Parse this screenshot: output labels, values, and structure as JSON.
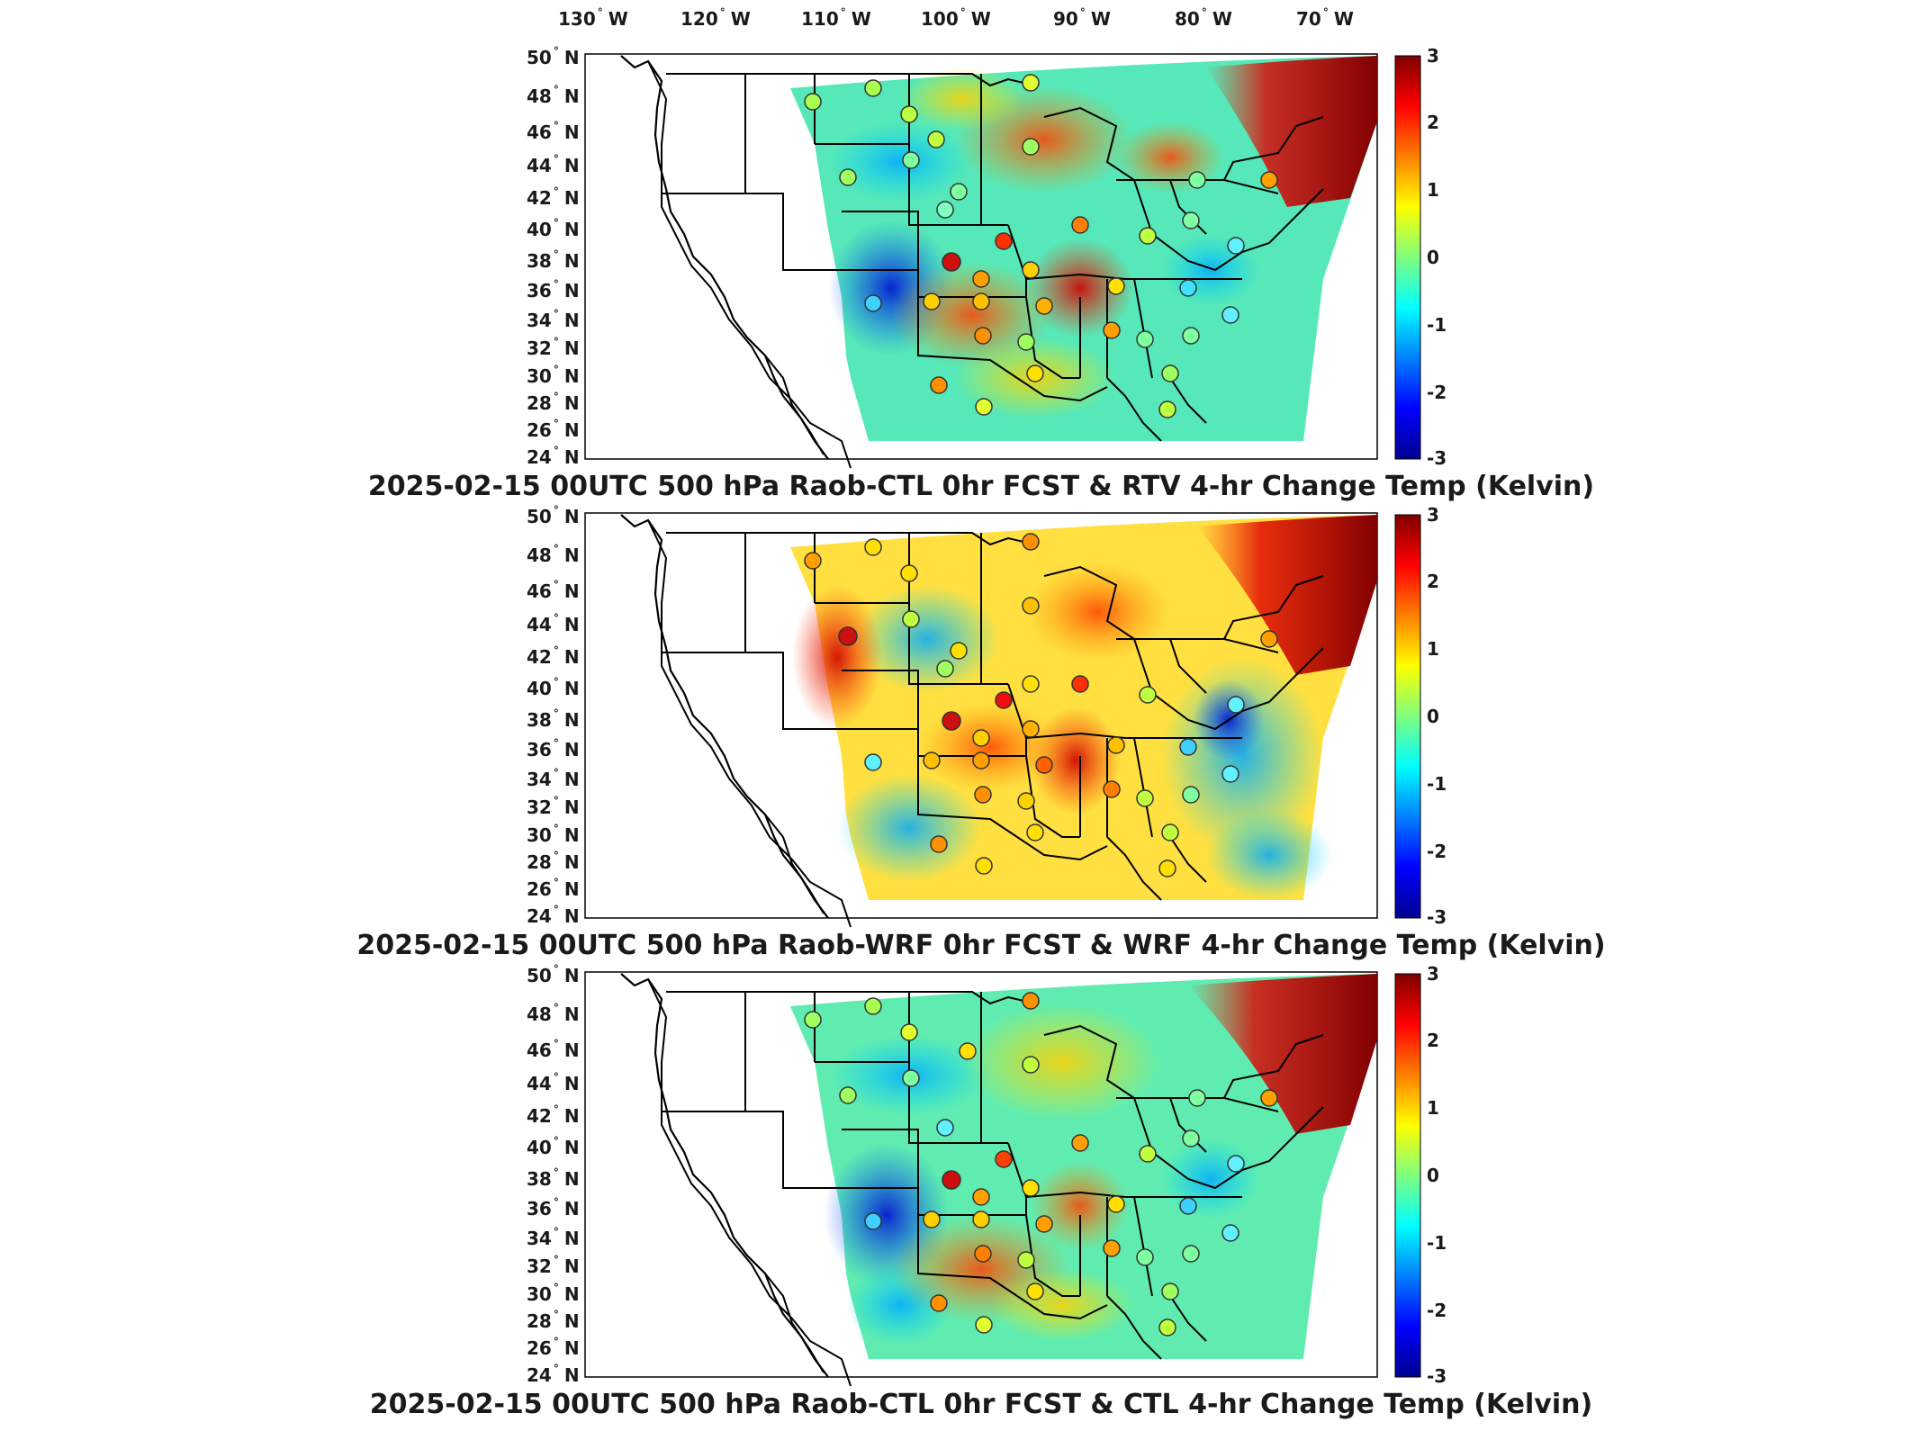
{
  "lon_labels": [
    {
      "deg": "130",
      "hemi": "W"
    },
    {
      "deg": "120",
      "hemi": "W"
    },
    {
      "deg": "110",
      "hemi": "W"
    },
    {
      "deg": "100",
      "hemi": "W"
    },
    {
      "deg": "90",
      "hemi": "W"
    },
    {
      "deg": "80",
      "hemi": "W"
    },
    {
      "deg": "70",
      "hemi": "W"
    }
  ],
  "lat_labels": [
    {
      "deg": "50",
      "hemi": "N"
    },
    {
      "deg": "48",
      "hemi": "N"
    },
    {
      "deg": "46",
      "hemi": "N"
    },
    {
      "deg": "44",
      "hemi": "N"
    },
    {
      "deg": "42",
      "hemi": "N"
    },
    {
      "deg": "40",
      "hemi": "N"
    },
    {
      "deg": "38",
      "hemi": "N"
    },
    {
      "deg": "36",
      "hemi": "N"
    },
    {
      "deg": "34",
      "hemi": "N"
    },
    {
      "deg": "32",
      "hemi": "N"
    },
    {
      "deg": "30",
      "hemi": "N"
    },
    {
      "deg": "28",
      "hemi": "N"
    },
    {
      "deg": "26",
      "hemi": "N"
    },
    {
      "deg": "24",
      "hemi": "N"
    }
  ],
  "degree_symbol": "°",
  "colorbar": {
    "ticks": [
      "3",
      "2",
      "1",
      "0",
      "-1",
      "-2",
      "-3"
    ],
    "range": [
      -3,
      3
    ],
    "colormap": "jet"
  },
  "panels": [
    {
      "title": "2025-02-15 00UTC 500 hPa Raob-CTL 0hr FCST & RTV 4-hr Change Temp (Kelvin)"
    },
    {
      "title": "2025-02-15 00UTC 500 hPa Raob-WRF 0hr FCST & WRF 4-hr Change Temp (Kelvin)"
    },
    {
      "title": "2025-02-15 00UTC 500 hPa Raob-CTL 0hr FCST & CTL 4-hr Change Temp (Kelvin)"
    }
  ]
}
